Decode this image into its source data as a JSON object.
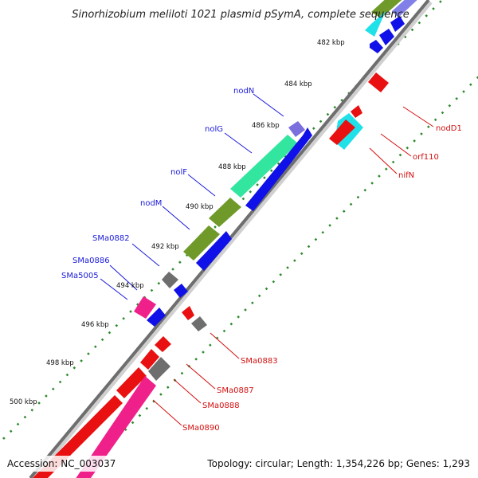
{
  "header": {
    "title": "Sinorhizobium meliloti 1021 plasmid pSymA, complete sequence"
  },
  "footer": {
    "accession": "Accession: NC_003037",
    "summary": "Topology: circular; Length: 1,354,226 bp; Genes: 1,293"
  },
  "ticks": [
    "482 kbp",
    "484 kbp",
    "486 kbp",
    "488 kbp",
    "490 kbp",
    "492 kbp",
    "494 kbp",
    "496 kbp",
    "498 kbp",
    "500 kbp"
  ],
  "labels_left": [
    "nodN",
    "nolG",
    "nolF",
    "nodM",
    "SMa0882",
    "SMa0886",
    "SMa5005"
  ],
  "labels_right": [
    "nodD1",
    "orf110",
    "nifN",
    "SMa0883",
    "SMa0887",
    "SMa0888",
    "SMa0890"
  ],
  "colors": {
    "backbone": "#6e6e6e",
    "forward_strand": "#1010e8",
    "reverse_strand": "#e81010",
    "cog_green": "#6f9a2a",
    "cog_mint": "#33e6a0",
    "cog_cyan": "#20e0e8",
    "cog_pink": "#f0208a",
    "cog_violet": "#7a6fdc",
    "cog_gray": "#6e6e6e",
    "ticks": "#2d8a2d"
  }
}
